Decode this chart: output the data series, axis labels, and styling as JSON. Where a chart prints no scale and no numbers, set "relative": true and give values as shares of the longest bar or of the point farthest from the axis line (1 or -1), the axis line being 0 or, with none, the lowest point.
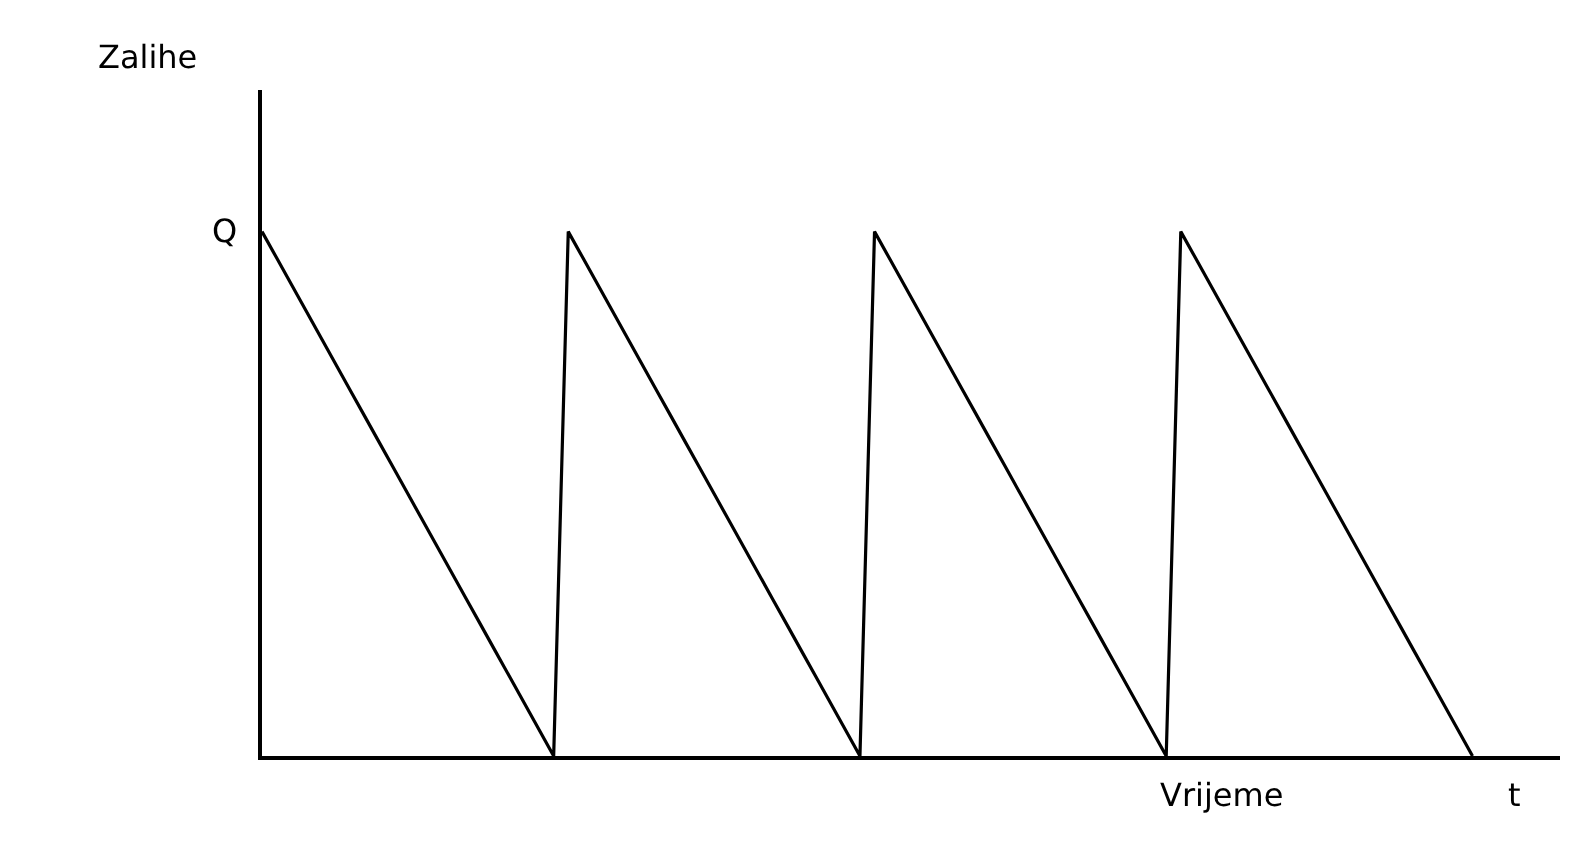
{
  "chart_data": {
    "type": "line",
    "relative": true,
    "categories": [
      null,
      null,
      null,
      null,
      null,
      null,
      null,
      null,
      null,
      null,
      null,
      null,
      null,
      null,
      null,
      null,
      null,
      null,
      null,
      null,
      null,
      null,
      null,
      null,
      null,
      null,
      null,
      null,
      null,
      null,
      null,
      null,
      null,
      null,
      null,
      null,
      null,
      null,
      null,
      null,
      null,
      null,
      null,
      null,
      null,
      null,
      null,
      null,
      null,
      null,
      null,
      null,
      null,
      null,
      null,
      null,
      null,
      null,
      null,
      null,
      null,
      null,
      null,
      null,
      null,
      null,
      null,
      null,
      null,
      null,
      null,
      null,
      null,
      null,
      null,
      null,
      null,
      null,
      null,
      null,
      null,
      null,
      null,
      null,
      null,
      null,
      null,
      null,
      null,
      null
    ],
    "marker": "none",
    "line_style": "solid",
    "series": [
      {
        "color": "#000000",
        "values": [
          1,
          0.95,
          0.9,
          0.85,
          0.8,
          0.75,
          0.7,
          0.65,
          0.6,
          0.55,
          0.5,
          0.45,
          0.4,
          0.35,
          0.3,
          0.25,
          0.2,
          0.15,
          0.1,
          0.05,
          0,
          1,
          0.95,
          0.9,
          0.85,
          0.8,
          0.75,
          0.7,
          0.65,
          0.6,
          0.55,
          0.5,
          0.45,
          0.4,
          0.35,
          0.3,
          0.25,
          0.2,
          0.15,
          0.1,
          0.05,
          0,
          1,
          0.95,
          0.9,
          0.85,
          0.8,
          0.75,
          0.7,
          0.65,
          0.6,
          0.55,
          0.5,
          0.45,
          0.4,
          0.35,
          0.3,
          0.25,
          0.2,
          0.15,
          0.1,
          0.05,
          0,
          1,
          0.95,
          0.9,
          0.85,
          0.8,
          0.75,
          0.7,
          0.65,
          0.6,
          0.55,
          0.5,
          0.45,
          0.4,
          0.35,
          0.3,
          0.25,
          0.2,
          0.15,
          0.1,
          0.05,
          0,
          null,
          null,
          null,
          null,
          null,
          null
        ]
      }
    ],
    "xlabel": "Vrijeme",
    "annotations": [
      "Zalihe",
      "Q",
      "t"
    ]
  }
}
